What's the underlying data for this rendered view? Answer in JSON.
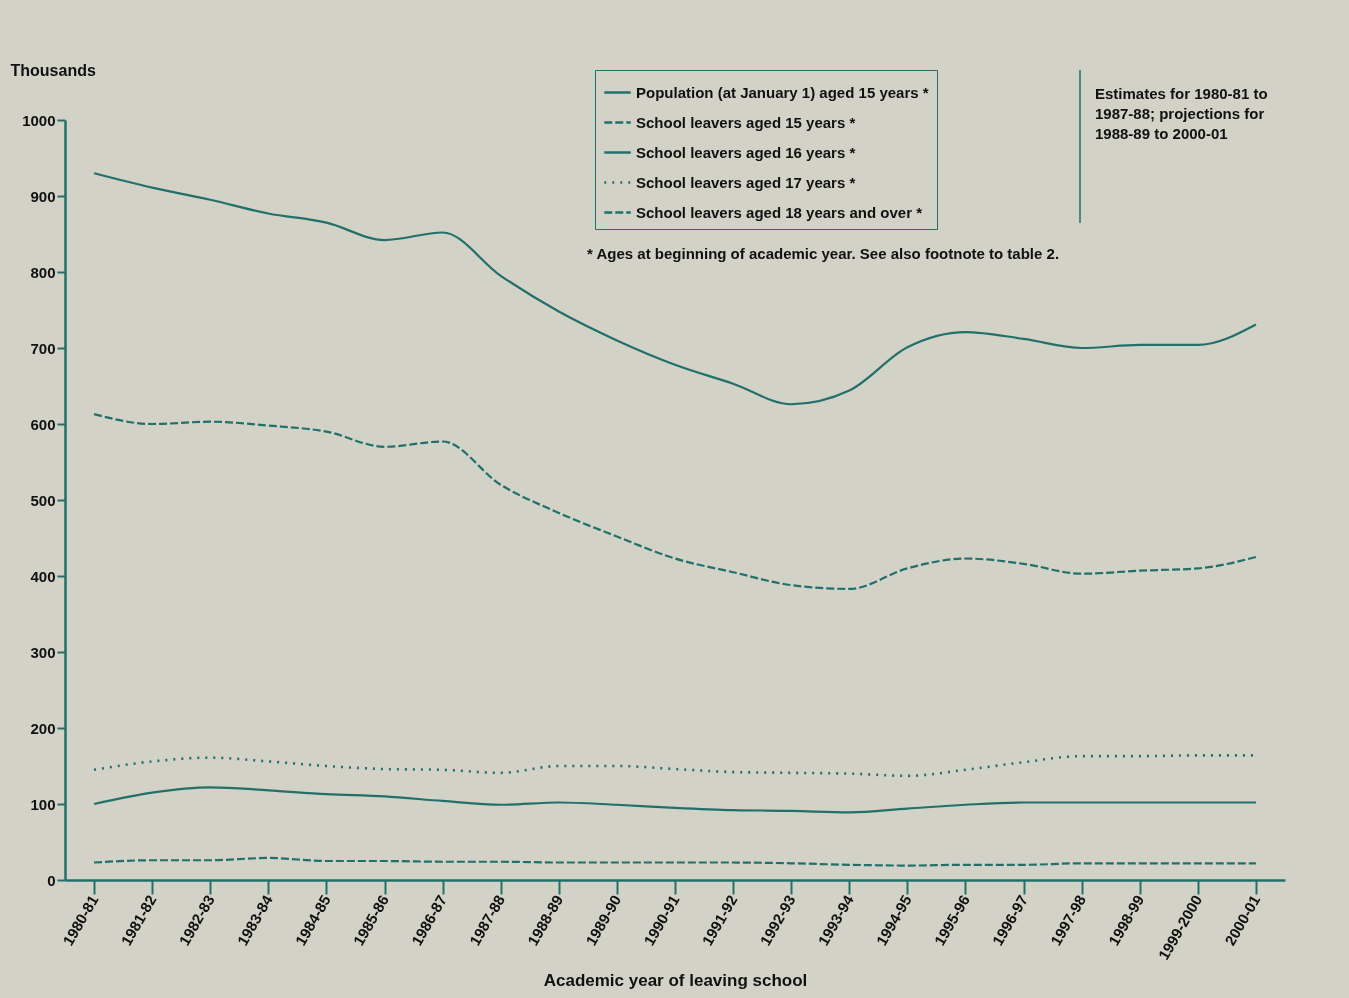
{
  "chart_data": {
    "type": "line",
    "xlabel": "Academic year of leaving school",
    "ylabel": "Thousands",
    "categories": [
      "1980-81",
      "1981-82",
      "1982-83",
      "1983-84",
      "1984-85",
      "1985-86",
      "1986-87",
      "1987-88",
      "1988-89",
      "1989-90",
      "1990-91",
      "1991-92",
      "1992-93",
      "1993-94",
      "1994-95",
      "1995-96",
      "1996-97",
      "1997-98",
      "1998-99",
      "1999-2000",
      "2000-01"
    ],
    "ylim": [
      0,
      1000
    ],
    "yticks": [
      0,
      100,
      200,
      300,
      400,
      500,
      600,
      700,
      800,
      900,
      {
        "value": 1000,
        "label": "1000"
      }
    ],
    "grid": false,
    "legend": "top right",
    "marker": "none",
    "series": [
      {
        "name": "Population (at January 1) aged 15 years *",
        "color": "#22706c",
        "line_style": "solid",
        "values": [
          930,
          911,
          895,
          877,
          865,
          842,
          852,
          795,
          748,
          710,
          678,
          653,
          626,
          644,
          701,
          721,
          712,
          700,
          704,
          704,
          731
        ]
      },
      {
        "name": "School leavers aged 15 years *",
        "color": "#22706c",
        "line_style": "dashed",
        "values": [
          613,
          600,
          603,
          598,
          590,
          570,
          577,
          520,
          483,
          452,
          423,
          405,
          388,
          383,
          410,
          423,
          416,
          403,
          407,
          410,
          425
        ]
      },
      {
        "name": "School leavers aged 16 years *",
        "color": "#22706c",
        "line_style": "solid",
        "values": [
          100,
          115,
          122,
          118,
          113,
          110,
          104,
          99,
          102,
          99,
          95,
          92,
          91,
          89,
          94,
          99,
          102,
          102,
          102,
          102,
          102
        ]
      },
      {
        "name": "School leavers aged 17 years *",
        "color": "#22706c",
        "line_style": "dotted",
        "values": [
          145,
          156,
          161,
          156,
          150,
          146,
          145,
          141,
          150,
          150,
          146,
          142,
          141,
          140,
          137,
          145,
          155,
          163,
          163,
          164,
          164
        ]
      },
      {
        "name": "School leavers aged 18 years and over *",
        "color": "#22706c",
        "line_style": "dashed",
        "values": [
          23,
          26,
          26,
          29,
          25,
          25,
          24,
          24,
          23,
          23,
          23,
          23,
          22,
          20,
          19,
          20,
          20,
          22,
          22,
          22,
          22
        ]
      }
    ],
    "annotations": [
      "Estimates for 1980-81 to 1987-88; projections for 1988-89 to 2000-01",
      "* Ages at beginning of academic year. See also footnote to table 2."
    ]
  }
}
